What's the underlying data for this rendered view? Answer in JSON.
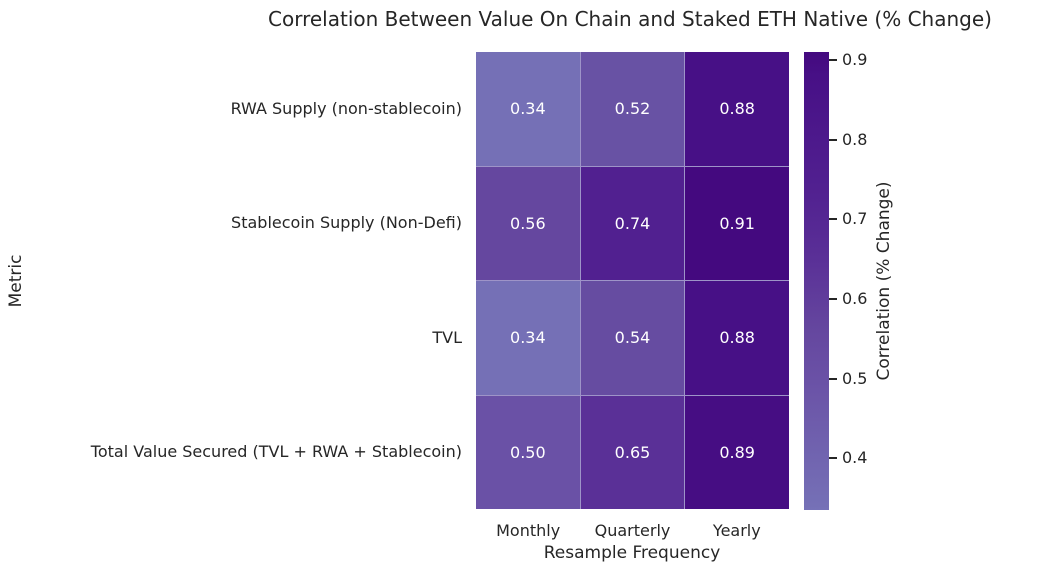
{
  "chart_data": {
    "type": "heatmap",
    "title": "Correlation Between Value On Chain and Staked ETH Native (% Change)",
    "xlabel": "Resample Frequency",
    "ylabel": "Metric",
    "columns": [
      "Monthly",
      "Quarterly",
      "Yearly"
    ],
    "rows": [
      "RWA Supply (non-stablecoin)",
      "Stablecoin Supply (Non-Defi)",
      "TVL",
      "Total Value Secured (TVL + RWA + Stablecoin)"
    ],
    "values": [
      [
        0.34,
        0.52,
        0.88
      ],
      [
        0.56,
        0.74,
        0.91
      ],
      [
        0.34,
        0.54,
        0.88
      ],
      [
        0.5,
        0.65,
        0.89
      ]
    ],
    "value_labels": [
      [
        "0.34",
        "0.52",
        "0.88"
      ],
      [
        "0.56",
        "0.74",
        "0.91"
      ],
      [
        "0.34",
        "0.54",
        "0.88"
      ],
      [
        "0.50",
        "0.65",
        "0.89"
      ]
    ],
    "cell_colors": [
      [
        "#7570b6",
        "#6852a4",
        "#471086"
      ],
      [
        "#65479f",
        "#512090",
        "#44097f"
      ],
      [
        "#7570b6",
        "#664ca1",
        "#471086"
      ],
      [
        "#6a51a6",
        "#5a3097",
        "#460d83"
      ]
    ],
    "annotation_text_color": "#ffffff",
    "cell_line_color": "#9e94c8",
    "colorbar": {
      "label": "Correlation (% Change)",
      "tick_labels": [
        "0.9",
        "0.8",
        "0.7",
        "0.6",
        "0.5",
        "0.4"
      ],
      "tick_values": [
        0.9,
        0.8,
        0.7,
        0.6,
        0.5,
        0.4
      ],
      "vmin": 0.335,
      "vmax": 0.91,
      "gradient_stops": [
        {
          "pos": 0.0,
          "color": "#44097f"
        },
        {
          "pos": 0.052,
          "color": "#471086"
        },
        {
          "pos": 0.296,
          "color": "#512090"
        },
        {
          "pos": 0.452,
          "color": "#5a3097"
        },
        {
          "pos": 0.609,
          "color": "#65479f"
        },
        {
          "pos": 0.713,
          "color": "#6a51a6"
        },
        {
          "pos": 0.991,
          "color": "#7570b6"
        },
        {
          "pos": 1.0,
          "color": "#7672b8"
        }
      ]
    },
    "grid": false,
    "legend_position": "right-colorbar",
    "text_color": "#262626",
    "background_color": "#ffffff"
  }
}
